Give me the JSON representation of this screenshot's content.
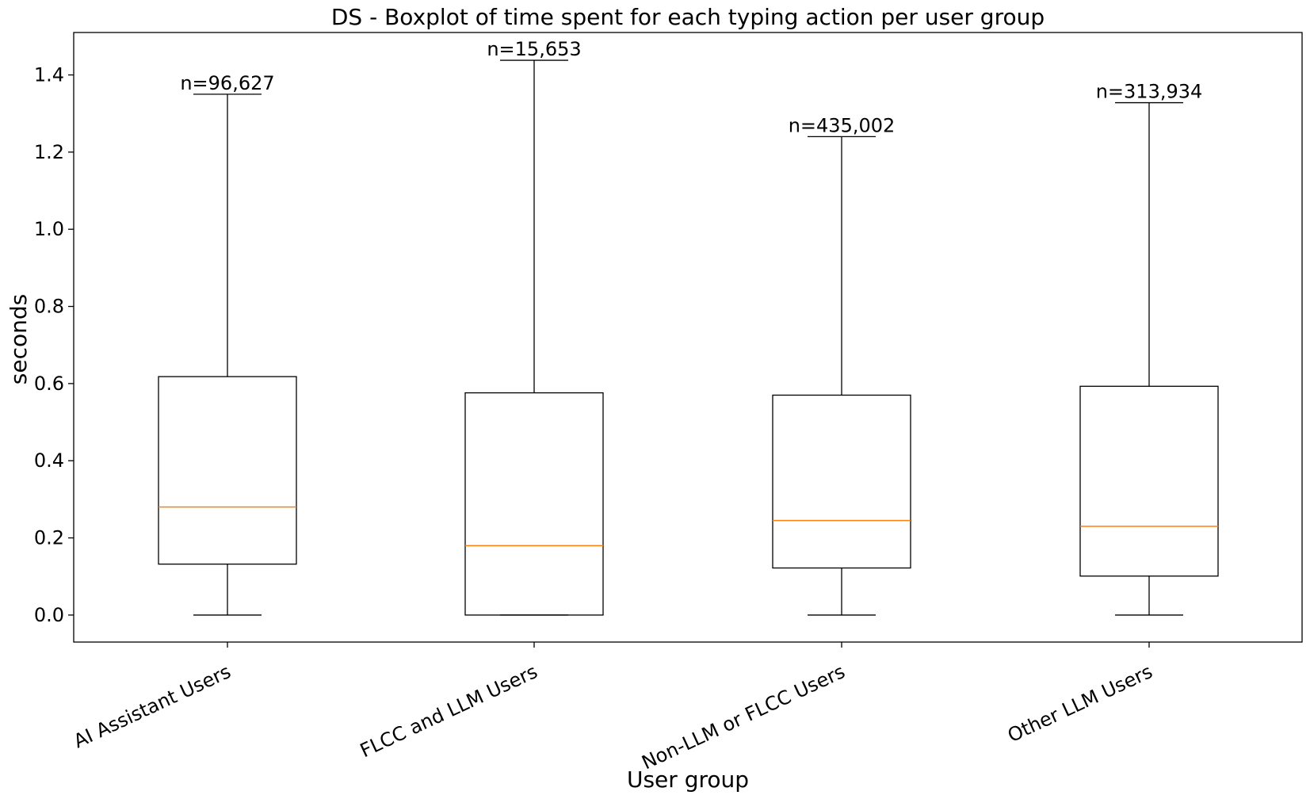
{
  "chart_data": {
    "type": "boxplot",
    "title": "DS - Boxplot of time spent for each typing action per user group",
    "xlabel": "User group",
    "ylabel": "seconds",
    "ylim": [
      -0.07,
      1.51
    ],
    "yticks": [
      0.0,
      0.2,
      0.4,
      0.6,
      0.8,
      1.0,
      1.2,
      1.4
    ],
    "ytick_labels": [
      "0.0",
      "0.2",
      "0.4",
      "0.6",
      "0.8",
      "1.0",
      "1.2",
      "1.4"
    ],
    "grid": false,
    "categories": [
      "AI Assistant Users",
      "FLCC and LLM Users",
      "Non-LLM or FLCC Users",
      "Other LLM Users"
    ],
    "boxes": [
      {
        "category": "AI Assistant Users",
        "whisker_low": 0.0,
        "q1": 0.132,
        "median": 0.28,
        "q3": 0.618,
        "whisker_high": 1.35,
        "annotation": "n=96,627"
      },
      {
        "category": "FLCC and LLM Users",
        "whisker_low": 0.0,
        "q1": 0.0,
        "median": 0.18,
        "q3": 0.576,
        "whisker_high": 1.438,
        "annotation": "n=15,653"
      },
      {
        "category": "Non-LLM or FLCC Users",
        "whisker_low": 0.0,
        "q1": 0.122,
        "median": 0.245,
        "q3": 0.57,
        "whisker_high": 1.24,
        "annotation": "n=435,002"
      },
      {
        "category": "Other LLM Users",
        "whisker_low": 0.0,
        "q1": 0.101,
        "median": 0.23,
        "q3": 0.593,
        "whisker_high": 1.328,
        "annotation": "n=313,934"
      }
    ],
    "colors": {
      "box": "#000000",
      "median": "#ff7f0e"
    }
  }
}
